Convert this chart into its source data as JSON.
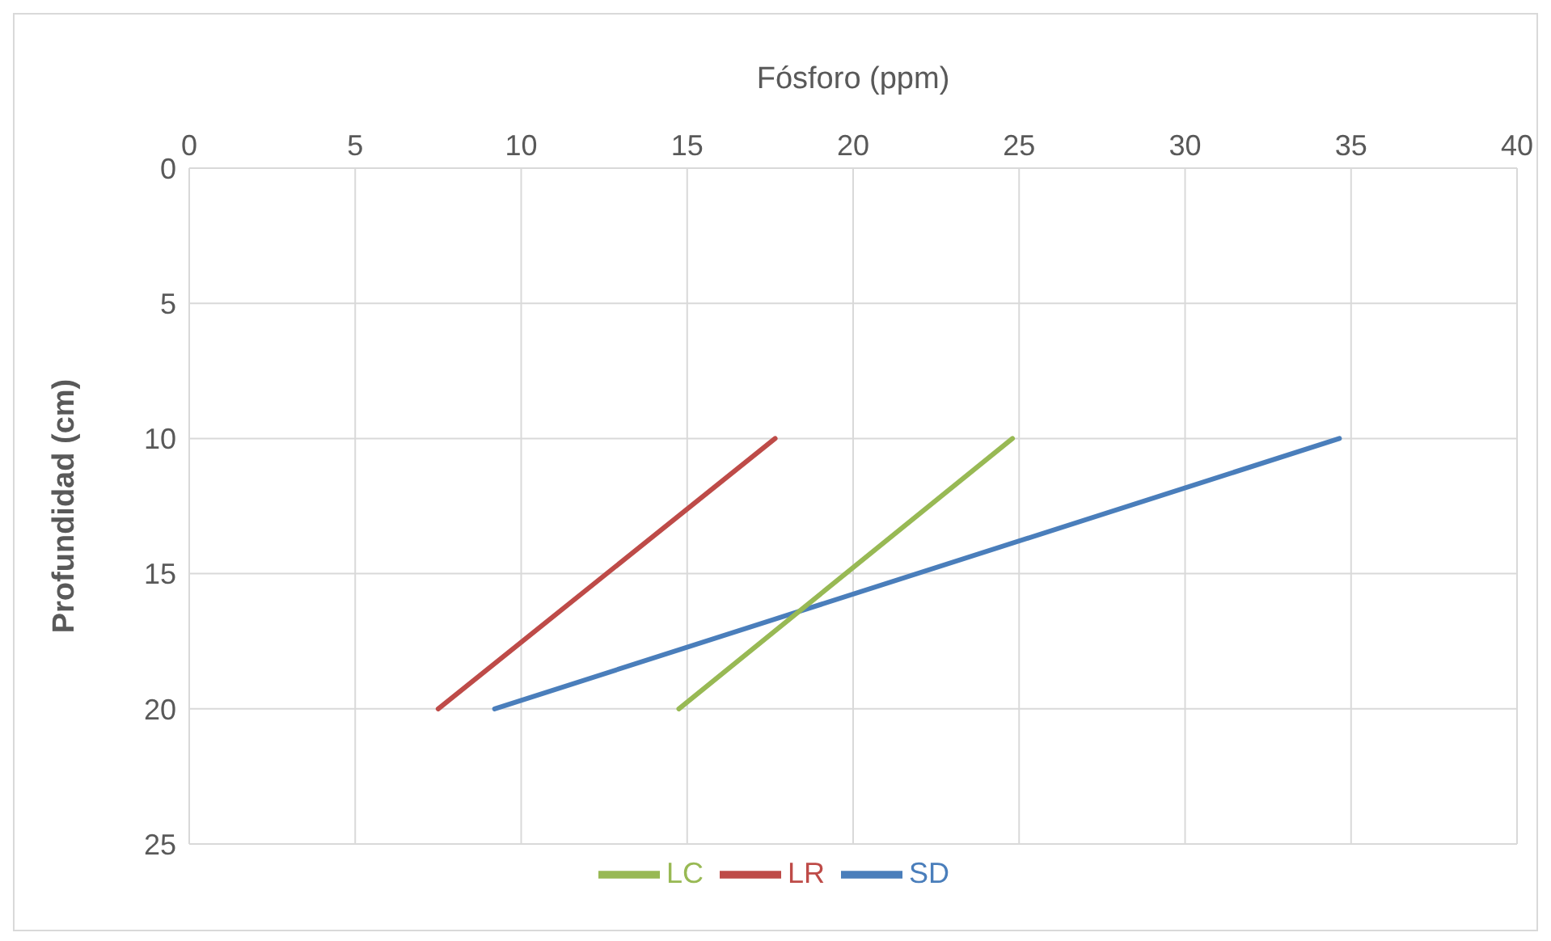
{
  "chart_data": {
    "type": "line",
    "xlabel": "Fósforo (ppm)",
    "ylabel": "Profundidad (cm)",
    "xlim": [
      0,
      40
    ],
    "xticks": [
      0,
      5,
      10,
      15,
      20,
      25,
      30,
      35,
      40
    ],
    "ylim": [
      25,
      0
    ],
    "yticks": [
      0,
      5,
      10,
      15,
      20,
      25
    ],
    "grid": true,
    "legend": "bottom",
    "marker": "none",
    "line_style": "solid",
    "series": [
      {
        "name": "SD",
        "color": "#4a7ebb",
        "x": [
          9.2,
          34.65
        ],
        "values": [
          20,
          10
        ]
      },
      {
        "name": "LR",
        "color": "#be4b48",
        "x": [
          7.5,
          17.65
        ],
        "values": [
          20,
          10
        ]
      },
      {
        "name": "LC",
        "color": "#98b954",
        "x": [
          14.75,
          24.8
        ],
        "values": [
          20,
          10
        ]
      }
    ]
  }
}
